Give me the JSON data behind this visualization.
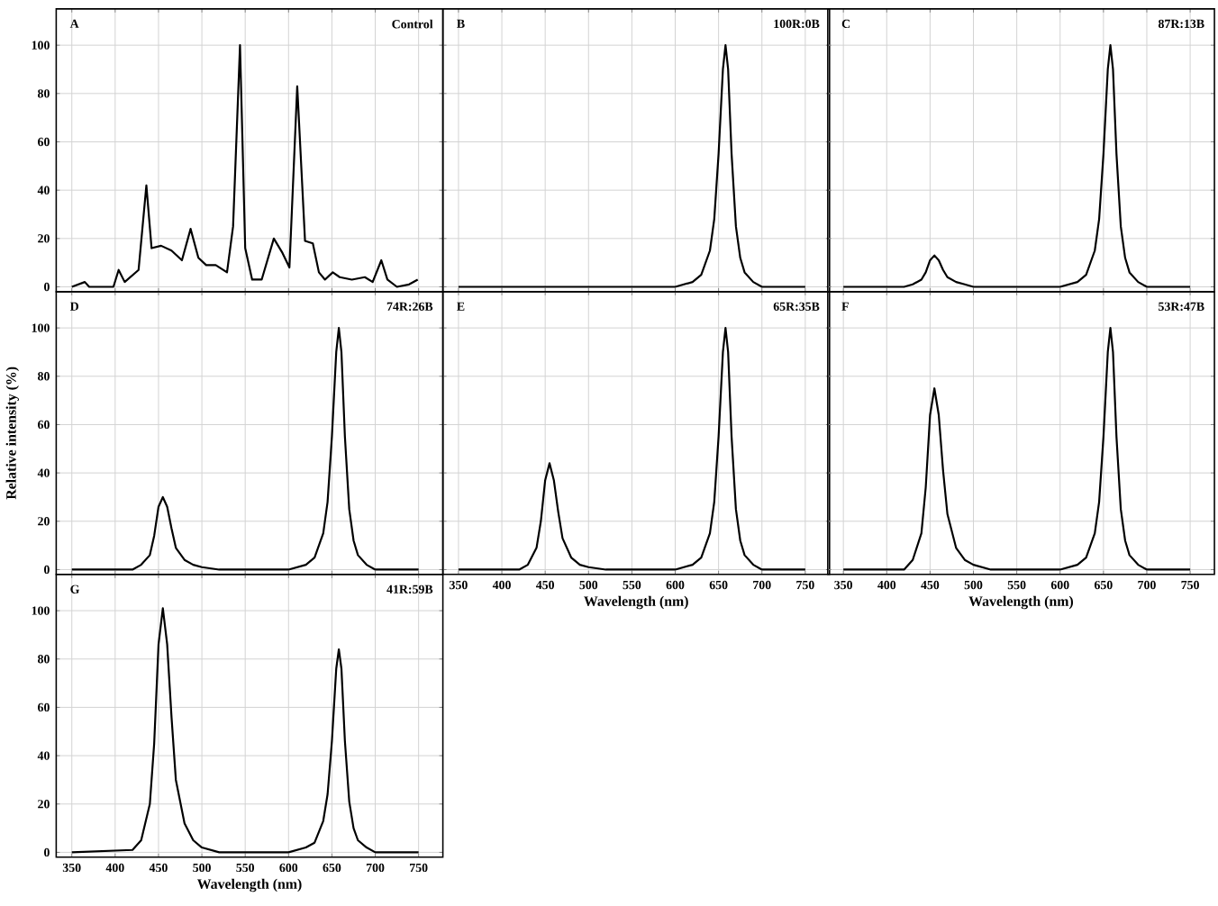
{
  "chart_data": [
    {
      "type": "line",
      "annotations": [
        "A",
        "Control"
      ],
      "xlim": [
        332,
        778
      ],
      "ylim": [
        -2,
        115
      ],
      "xticks": [
        350,
        400,
        450,
        500,
        550,
        600,
        650,
        700,
        750
      ],
      "yticks": [
        0,
        20,
        40,
        60,
        80,
        100
      ],
      "grid": true,
      "tick_labels": "y",
      "color": "#000000",
      "x": [
        350,
        365,
        370,
        398,
        404,
        411,
        427,
        436,
        442,
        453,
        465,
        477,
        487,
        496,
        505,
        516,
        529,
        536,
        544,
        550,
        558,
        569,
        583,
        593,
        601,
        610,
        619,
        628,
        635,
        642,
        651,
        659,
        673,
        688,
        697,
        707,
        714,
        725,
        739,
        749
      ],
      "values": [
        0,
        2,
        0,
        0,
        7,
        2,
        7,
        42,
        16,
        17,
        15,
        11,
        24,
        12,
        9,
        9,
        6,
        25,
        100,
        16,
        3,
        3,
        20,
        14,
        8,
        83,
        19,
        18,
        6,
        3,
        6,
        4,
        3,
        4,
        2,
        11,
        3,
        0,
        1,
        3
      ]
    },
    {
      "type": "line",
      "annotations": [
        "B",
        "100R:0B"
      ],
      "xlim": [
        332,
        778
      ],
      "ylim": [
        -2,
        115
      ],
      "xticks": [
        350,
        400,
        450,
        500,
        550,
        600,
        650,
        700,
        750
      ],
      "yticks": [
        0,
        20,
        40,
        60,
        80,
        100
      ],
      "grid": true,
      "tick_labels": false,
      "color": "#000000",
      "x": [
        350,
        600,
        620,
        630,
        640,
        645,
        650,
        655,
        658,
        661,
        665,
        670,
        675,
        680,
        690,
        700,
        750
      ],
      "values": [
        0,
        0,
        2,
        5,
        15,
        28,
        55,
        90,
        100,
        90,
        55,
        25,
        12,
        6,
        2,
        0,
        0
      ]
    },
    {
      "type": "line",
      "annotations": [
        "C",
        "87R:13B"
      ],
      "xlim": [
        332,
        778
      ],
      "ylim": [
        -2,
        115
      ],
      "xticks": [
        350,
        400,
        450,
        500,
        550,
        600,
        650,
        700,
        750
      ],
      "yticks": [
        0,
        20,
        40,
        60,
        80,
        100
      ],
      "grid": true,
      "tick_labels": false,
      "color": "#000000",
      "x": [
        350,
        420,
        430,
        440,
        445,
        450,
        455,
        460,
        465,
        470,
        480,
        490,
        500,
        520,
        600,
        620,
        630,
        640,
        645,
        650,
        655,
        658,
        661,
        665,
        670,
        675,
        680,
        690,
        700,
        750
      ],
      "values": [
        0,
        0,
        1,
        3,
        6,
        11,
        13,
        11,
        7,
        4,
        2,
        1,
        0,
        0,
        0,
        2,
        5,
        15,
        28,
        55,
        90,
        100,
        90,
        55,
        25,
        12,
        6,
        2,
        0,
        0
      ]
    },
    {
      "type": "line",
      "annotations": [
        "D",
        "74R:26B"
      ],
      "ylabel": "Relative intensity (%)",
      "xlim": [
        332,
        778
      ],
      "ylim": [
        -2,
        115
      ],
      "xticks": [
        350,
        400,
        450,
        500,
        550,
        600,
        650,
        700,
        750
      ],
      "yticks": [
        0,
        20,
        40,
        60,
        80,
        100
      ],
      "grid": true,
      "tick_labels": "y",
      "color": "#000000",
      "x": [
        350,
        420,
        430,
        440,
        445,
        450,
        455,
        460,
        465,
        470,
        480,
        490,
        500,
        520,
        600,
        620,
        630,
        640,
        645,
        650,
        655,
        658,
        661,
        665,
        670,
        675,
        680,
        690,
        700,
        750
      ],
      "values": [
        0,
        0,
        2,
        6,
        14,
        26,
        30,
        26,
        17,
        9,
        4,
        2,
        1,
        0,
        0,
        2,
        5,
        15,
        28,
        55,
        90,
        100,
        90,
        55,
        25,
        12,
        6,
        2,
        0,
        0
      ]
    },
    {
      "type": "line",
      "annotations": [
        "E",
        "65R:35B"
      ],
      "xlabel": "Wavelength (nm)",
      "xlim": [
        332,
        778
      ],
      "ylim": [
        -2,
        115
      ],
      "xticks": [
        350,
        400,
        450,
        500,
        550,
        600,
        650,
        700,
        750
      ],
      "yticks": [
        0,
        20,
        40,
        60,
        80,
        100
      ],
      "grid": true,
      "tick_labels": "x",
      "color": "#000000",
      "x": [
        350,
        420,
        430,
        440,
        445,
        450,
        455,
        460,
        465,
        470,
        480,
        490,
        500,
        520,
        600,
        620,
        630,
        640,
        645,
        650,
        655,
        658,
        661,
        665,
        670,
        675,
        680,
        690,
        700,
        750
      ],
      "values": [
        0,
        0,
        2,
        9,
        20,
        37,
        44,
        37,
        24,
        13,
        5,
        2,
        1,
        0,
        0,
        2,
        5,
        15,
        28,
        55,
        90,
        100,
        90,
        55,
        25,
        12,
        6,
        2,
        0,
        0
      ]
    },
    {
      "type": "line",
      "annotations": [
        "F",
        "53R:47B"
      ],
      "xlabel": "Wavelength (nm)",
      "xlim": [
        332,
        778
      ],
      "ylim": [
        -2,
        115
      ],
      "xticks": [
        350,
        400,
        450,
        500,
        550,
        600,
        650,
        700,
        750
      ],
      "yticks": [
        0,
        20,
        40,
        60,
        80,
        100
      ],
      "grid": true,
      "tick_labels": "x",
      "color": "#000000",
      "x": [
        350,
        420,
        430,
        440,
        445,
        450,
        455,
        460,
        465,
        470,
        480,
        490,
        500,
        520,
        600,
        620,
        630,
        640,
        645,
        650,
        655,
        658,
        661,
        665,
        670,
        675,
        680,
        690,
        700,
        750
      ],
      "values": [
        0,
        0,
        4,
        15,
        34,
        64,
        75,
        64,
        41,
        23,
        9,
        4,
        2,
        0,
        0,
        2,
        5,
        15,
        28,
        55,
        90,
        100,
        90,
        55,
        25,
        12,
        6,
        2,
        0,
        0
      ]
    },
    {
      "type": "line",
      "annotations": [
        "G",
        "41R:59B"
      ],
      "xlabel": "Wavelength (nm)",
      "xlim": [
        332,
        778
      ],
      "ylim": [
        -2,
        115
      ],
      "xticks": [
        350,
        400,
        450,
        500,
        550,
        600,
        650,
        700,
        750
      ],
      "yticks": [
        0,
        20,
        40,
        60,
        80,
        100
      ],
      "grid": true,
      "color": "#000000",
      "x": [
        350,
        420,
        430,
        440,
        445,
        450,
        455,
        460,
        465,
        470,
        480,
        490,
        500,
        520,
        600,
        620,
        630,
        640,
        645,
        650,
        655,
        658,
        661,
        665,
        670,
        675,
        680,
        690,
        700,
        750
      ],
      "values": [
        0,
        1,
        5,
        20,
        45,
        86,
        101,
        86,
        56,
        30,
        12,
        5,
        2,
        0,
        0,
        2,
        4,
        13,
        24,
        46,
        76,
        84,
        76,
        46,
        21,
        10,
        5,
        2,
        0,
        0
      ]
    }
  ]
}
